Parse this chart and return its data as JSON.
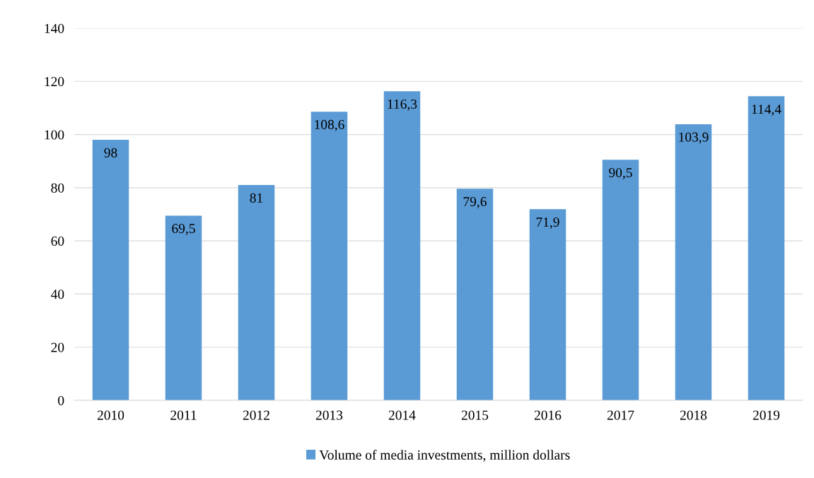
{
  "chart_data": {
    "type": "bar",
    "categories": [
      "2010",
      "2011",
      "2012",
      "2013",
      "2014",
      "2015",
      "2016",
      "2017",
      "2018",
      "2019"
    ],
    "series": [
      {
        "name": "Volume of media investments, million dollars",
        "color": "#5b9bd5",
        "values": [
          98,
          69.5,
          81,
          108.6,
          116.3,
          79.6,
          71.9,
          90.5,
          103.9,
          114.4
        ],
        "value_labels": [
          "98",
          "69,5",
          "81",
          "108,6",
          "116,3",
          "79,6",
          "71,9",
          "90,5",
          "103,9",
          "114,4"
        ]
      }
    ],
    "ylim": [
      0,
      140
    ],
    "yticks": [
      0,
      20,
      40,
      60,
      80,
      100,
      120,
      140
    ],
    "grid": "y",
    "legend": "bottom"
  }
}
